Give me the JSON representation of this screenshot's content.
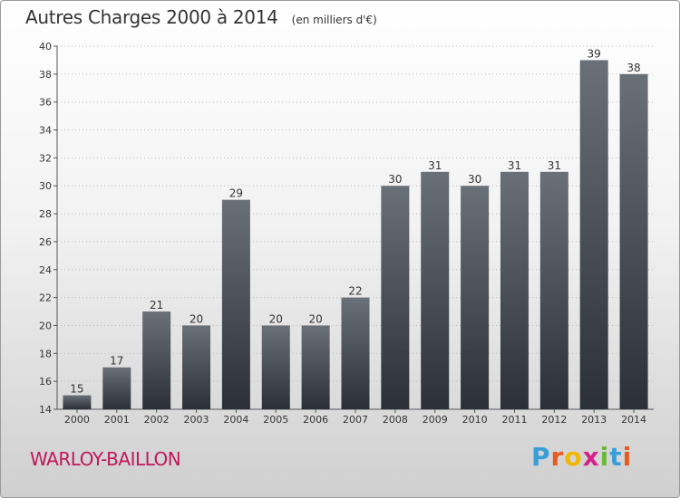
{
  "header": {
    "title": "Autres Charges 2000 à 2014",
    "unit": "(en milliers d'€)"
  },
  "footer": {
    "commune": "WARLOY-BAILLON",
    "logo_letters": [
      "P",
      "r",
      "o",
      "x",
      "i",
      "t",
      "i"
    ],
    "logo_colors": [
      "#3a9fd8",
      "#e85a1e",
      "#f0b800",
      "#d8208a",
      "#6cb83a",
      "#3a9fd8",
      "#e85a1e"
    ]
  },
  "colors": {
    "bar_top": "#6a7078",
    "bar_bottom": "#2b3038",
    "axis": "#555555",
    "grid": "#bbbbbb"
  },
  "chart_data": {
    "type": "bar",
    "title": "Autres Charges 2000 à 2014",
    "xlabel": "",
    "ylabel": "",
    "categories": [
      "2000",
      "2001",
      "2002",
      "2003",
      "2004",
      "2005",
      "2006",
      "2007",
      "2008",
      "2009",
      "2010",
      "2011",
      "2012",
      "2013",
      "2014"
    ],
    "values": [
      15,
      17,
      21,
      20,
      29,
      20,
      20,
      22,
      30,
      31,
      30,
      31,
      31,
      39,
      38
    ],
    "ylim": [
      14,
      40
    ],
    "yticks": [
      14,
      16,
      18,
      20,
      22,
      24,
      26,
      28,
      30,
      32,
      34,
      36,
      38,
      40
    ],
    "grid": true
  }
}
